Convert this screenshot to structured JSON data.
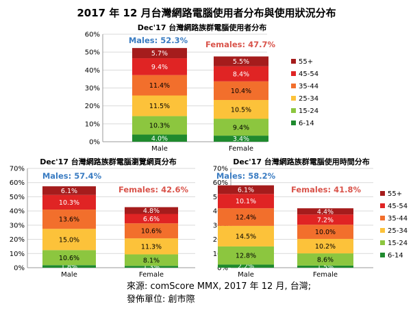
{
  "main_title": "2017 年 12 月台灣網路電腦使用者分布與使用狀況分布",
  "source_line1": "來源: comScore MMX, 2017 年 12 月, 台灣;",
  "source_line2": "發佈單位: 創市際",
  "colors": {
    "55+": "#a51c1c",
    "45-54": "#e02424",
    "35-44": "#f26f2c",
    "25-34": "#fcc23a",
    "15-24": "#8cc63f",
    "6-14": "#1f8a2e"
  },
  "chart_data": [
    {
      "type": "bar",
      "stacked": true,
      "title": "Dec'17 台灣網路族群電腦使用者分布",
      "categories": [
        "Male",
        "Female"
      ],
      "totals": [
        "Males: 52.3%",
        "Females: 47.7%"
      ],
      "ylim": [
        0,
        60
      ],
      "yticks": [
        "0%",
        "10%",
        "20%",
        "30%",
        "40%",
        "50%",
        "60%"
      ],
      "legend": [
        "55+",
        "45-54",
        "35-44",
        "25-34",
        "15-24",
        "6-14"
      ],
      "legend_position": "right",
      "series": [
        {
          "name": "6-14",
          "values": [
            4.0,
            3.4
          ],
          "labels": [
            "4.0%",
            "3.4%"
          ]
        },
        {
          "name": "15-24",
          "values": [
            10.3,
            9.4
          ],
          "labels": [
            "10.3%",
            "9.4%"
          ]
        },
        {
          "name": "25-34",
          "values": [
            11.5,
            10.5
          ],
          "labels": [
            "11.5%",
            "10.5%"
          ]
        },
        {
          "name": "35-44",
          "values": [
            11.4,
            10.4
          ],
          "labels": [
            "11.4%",
            "10.4%"
          ]
        },
        {
          "name": "45-54",
          "values": [
            9.4,
            8.4
          ],
          "labels": [
            "9.4%",
            "8.4%"
          ]
        },
        {
          "name": "55+",
          "values": [
            5.7,
            5.5
          ],
          "labels": [
            "5.7%",
            "5.5%"
          ]
        }
      ]
    },
    {
      "type": "bar",
      "stacked": true,
      "title": "Dec'17 台灣網路族群電腦瀏覽網頁分布",
      "categories": [
        "Male",
        "Female"
      ],
      "totals": [
        "Males: 57.4%",
        "Females: 42.6%"
      ],
      "ylim": [
        0,
        70
      ],
      "yticks": [
        "0%",
        "10%",
        "20%",
        "30%",
        "40%",
        "50%",
        "60%",
        "70%"
      ],
      "legend": [],
      "series": [
        {
          "name": "6-14",
          "values": [
            1.8,
            1.3
          ],
          "labels": [
            "1.8%",
            "1.3%"
          ]
        },
        {
          "name": "15-24",
          "values": [
            10.6,
            8.1
          ],
          "labels": [
            "10.6%",
            "8.1%"
          ]
        },
        {
          "name": "25-34",
          "values": [
            15.0,
            11.3
          ],
          "labels": [
            "15.0%",
            "11.3%"
          ]
        },
        {
          "name": "35-44",
          "values": [
            13.6,
            10.6
          ],
          "labels": [
            "13.6%",
            "10.6%"
          ]
        },
        {
          "name": "45-54",
          "values": [
            10.3,
            6.6
          ],
          "labels": [
            "10.3%",
            "6.6%"
          ]
        },
        {
          "name": "55+",
          "values": [
            6.1,
            4.8
          ],
          "labels": [
            "6.1%",
            "4.8%"
          ]
        }
      ]
    },
    {
      "type": "bar",
      "stacked": true,
      "title": "Dec'17 台灣網路族群電腦使用時間分布",
      "categories": [
        "Male",
        "Female"
      ],
      "totals": [
        "Males: 58.2%",
        "Females: 41.8%"
      ],
      "ylim": [
        0,
        70
      ],
      "yticks": [
        "0%",
        "10%",
        "20%",
        "30%",
        "40%",
        "50%",
        "60%",
        "70%"
      ],
      "legend": [
        "55+",
        "45-54",
        "35-44",
        "25-34",
        "15-24",
        "6-14"
      ],
      "legend_position": "right",
      "series": [
        {
          "name": "6-14",
          "values": [
            2.2,
            1.5
          ],
          "labels": [
            "2.2%",
            "1.5%"
          ]
        },
        {
          "name": "15-24",
          "values": [
            12.8,
            8.6
          ],
          "labels": [
            "12.8%",
            "8.6%"
          ]
        },
        {
          "name": "25-34",
          "values": [
            14.5,
            10.2
          ],
          "labels": [
            "14.5%",
            "10.2%"
          ]
        },
        {
          "name": "35-44",
          "values": [
            12.4,
            10.0
          ],
          "labels": [
            "12.4%",
            "10.0%"
          ]
        },
        {
          "name": "45-54",
          "values": [
            10.1,
            7.2
          ],
          "labels": [
            "10.1%",
            "7.2%"
          ]
        },
        {
          "name": "55+",
          "values": [
            6.1,
            4.4
          ],
          "labels": [
            "6.1%",
            "4.4%"
          ]
        }
      ]
    }
  ]
}
